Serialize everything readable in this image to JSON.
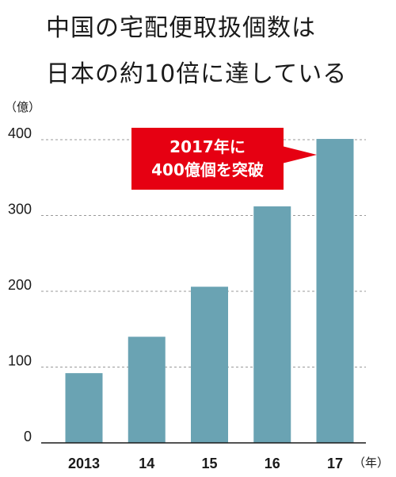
{
  "title_lines": [
    "中国の宅配便取扱個数は",
    "日本の約10倍に達している"
  ],
  "callout": {
    "line1": "2017年に",
    "line2": "400億個を突破"
  },
  "colors": {
    "bar": "#6aa3b3",
    "callout": "#e60012",
    "grid": "#9a9a9a",
    "axis": "#1a1a1a"
  },
  "chart_data": {
    "type": "bar",
    "categories": [
      "2013",
      "14",
      "15",
      "16",
      "17"
    ],
    "values": [
      92,
      140,
      206,
      312,
      401
    ],
    "ylim": [
      0,
      400
    ],
    "yticks": [
      0,
      100,
      200,
      300,
      400
    ],
    "ylabel": "（億）",
    "xlabel": "（年）",
    "grid": true,
    "grid_style": "dashed"
  }
}
